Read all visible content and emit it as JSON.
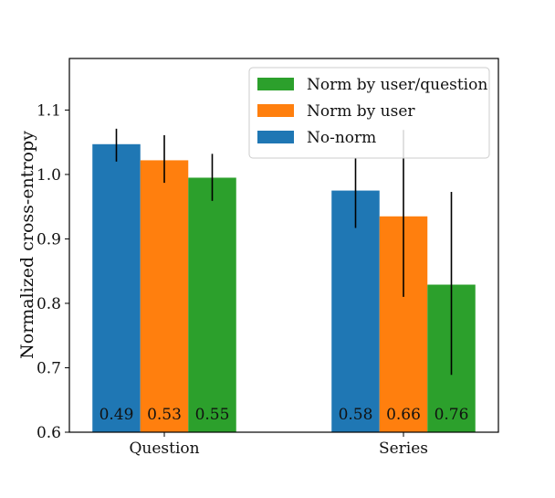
{
  "chart_data": {
    "type": "bar",
    "title": "",
    "xlabel": "",
    "ylabel": "Normalized cross-entropy",
    "ylim": [
      0.6,
      1.18
    ],
    "yticks": [
      "0.6",
      "0.7",
      "0.8",
      "0.9",
      "1.0",
      "1.1"
    ],
    "categories": [
      "Question",
      "Series"
    ],
    "series": [
      {
        "name": "No-norm",
        "color": "#1f77b4",
        "values": [
          1.047,
          0.975
        ],
        "err_low": [
          1.02,
          0.917
        ],
        "err_high": [
          1.071,
          1.026
        ],
        "labels": [
          "0.49",
          "0.58"
        ]
      },
      {
        "name": "Norm by user",
        "color": "#ff7f0e",
        "values": [
          1.022,
          0.935
        ],
        "err_low": [
          0.987,
          0.81
        ],
        "err_high": [
          1.061,
          1.069
        ],
        "labels": [
          "0.53",
          "0.66"
        ]
      },
      {
        "name": "Norm by user/question",
        "color": "#2ca02c",
        "values": [
          0.995,
          0.829
        ],
        "err_low": [
          0.959,
          0.689
        ],
        "err_high": [
          1.032,
          0.973
        ],
        "labels": [
          "0.55",
          "0.76"
        ]
      }
    ],
    "legend": {
      "placement": "top-right",
      "order": [
        "Norm by user/question",
        "Norm by user",
        "No-norm"
      ]
    },
    "grid": false
  }
}
